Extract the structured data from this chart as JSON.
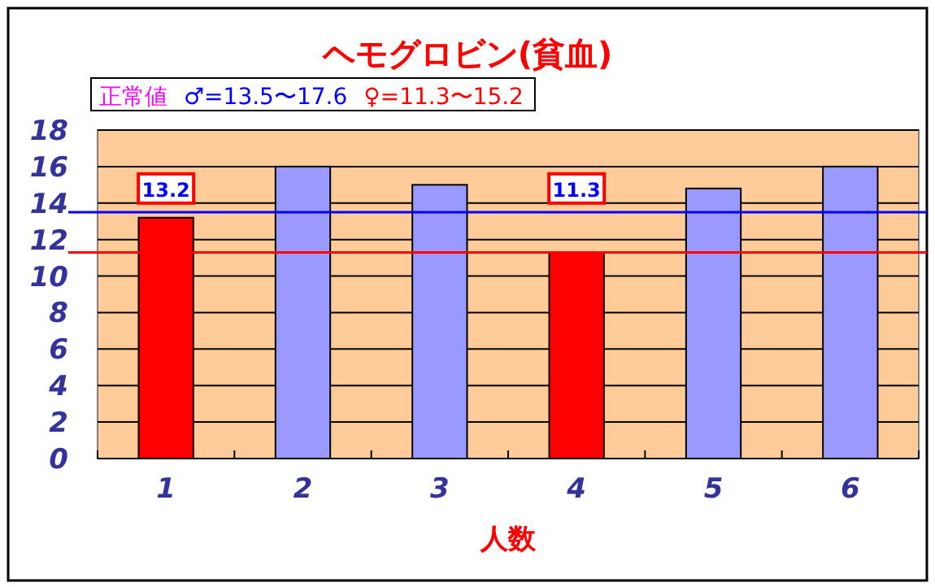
{
  "chart_data": {
    "type": "bar",
    "title": "ヘモグロビン(貧血)",
    "xlabel": "人数",
    "categories": [
      "1",
      "2",
      "3",
      "4",
      "5",
      "6"
    ],
    "values": [
      13.2,
      16,
      15,
      11.3,
      14.8,
      16
    ],
    "colors": [
      "#ff0000",
      "#9999ff",
      "#9999ff",
      "#ff0000",
      "#9999ff",
      "#9999ff"
    ],
    "value_labels": [
      "13.2",
      null,
      null,
      "11.3",
      null,
      null
    ],
    "ylim": [
      0,
      18
    ],
    "yticks": [
      0,
      2,
      4,
      6,
      8,
      10,
      12,
      14,
      16,
      18
    ],
    "grid": "y",
    "ref_lines": [
      {
        "axis": "y",
        "value": 13.5,
        "color": "#0000ff"
      },
      {
        "axis": "y",
        "value": 11.3,
        "color": "#ff0000"
      }
    ],
    "annotations": [
      "正常値",
      "♂=13.5〜17.6",
      "♀=11.3〜15.2"
    ]
  }
}
